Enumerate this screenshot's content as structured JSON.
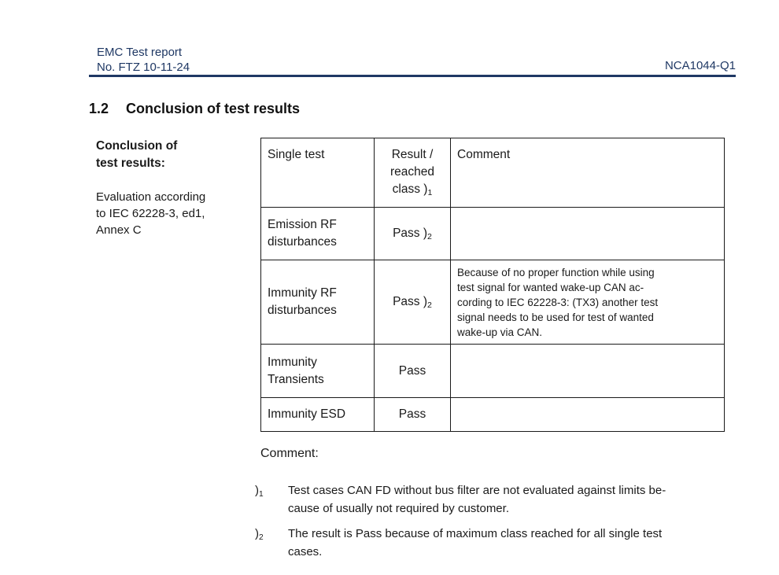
{
  "colors": {
    "accent": "#1f3864",
    "text": "#1a1a1a",
    "border": "#1a1a1a"
  },
  "header": {
    "report_type": "EMC Test report",
    "report_no": "No. FTZ 10-11-24",
    "doc_id": "NCA1044-Q1"
  },
  "section": {
    "number": "1.2",
    "title": "Conclusion of test results"
  },
  "sidebar": {
    "label": [
      "Conclusion of",
      "test results:"
    ],
    "note": [
      "Evaluation according",
      "to IEC 62228-3, ed1,",
      "Annex C"
    ]
  },
  "table": {
    "header": {
      "single_test": "Single test",
      "result_line1": "Result /",
      "result_line2": "reached",
      "result_line3": "class )",
      "result_sub": "1",
      "comment": "Comment"
    },
    "rows": [
      {
        "test": [
          "Emission RF",
          "disturbances"
        ],
        "result": "Pass )",
        "result_sub": "2",
        "comment": []
      },
      {
        "test": [
          "Immunity RF",
          "disturbances"
        ],
        "result": "Pass )",
        "result_sub": "2",
        "comment": [
          "Because of no proper function while using",
          "test signal for wanted wake-up CAN ac-",
          "cording to IEC 62228-3: (TX3) another test",
          "signal needs to be used for test of wanted",
          "wake-up via CAN."
        ]
      },
      {
        "test": [
          "Immunity",
          "Transients"
        ],
        "result": "Pass",
        "result_sub": "",
        "comment": []
      },
      {
        "test": [
          "Immunity ESD"
        ],
        "result": "Pass",
        "result_sub": "",
        "comment": []
      }
    ]
  },
  "comment_label": "Comment:",
  "footnotes": [
    {
      "marker": ")",
      "marker_sub": "1",
      "lines": [
        "Test cases CAN FD without bus filter are not evaluated against limits be-",
        "cause of usually not required by customer."
      ]
    },
    {
      "marker": ")",
      "marker_sub": "2",
      "lines": [
        "The result is Pass because of maximum class reached for all single test",
        "cases."
      ]
    }
  ]
}
